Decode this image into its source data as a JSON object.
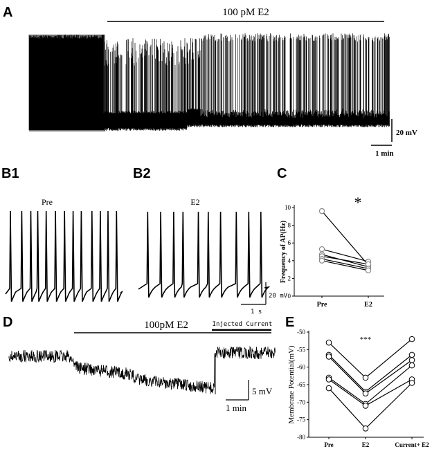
{
  "panels": {
    "a": "A",
    "b1": "B1",
    "b2": "B2",
    "c": "C",
    "d": "D",
    "e": "E"
  },
  "panel_a": {
    "treatment_label": "100 pM E2",
    "scale_v": "20 mV",
    "scale_t": "1 min"
  },
  "panel_b1": {
    "condition": "Pre",
    "spike_count": 13
  },
  "panel_b2": {
    "condition": "E2",
    "spike_count": 10,
    "scale_v": "20 mV",
    "scale_t": "1 s"
  },
  "panel_d": {
    "treatment_label": "100pM E2",
    "injected_label": "Injected Current",
    "scale_v": "5 mV",
    "scale_t": "1 min"
  },
  "chart_data": [
    {
      "panel": "C",
      "type": "scatter",
      "title": "",
      "xlabel": "",
      "ylabel": "Frequency of AP(Hz)",
      "categories": [
        "Pre",
        "E2"
      ],
      "ylim": [
        0,
        10
      ],
      "yticks": [
        "0",
        "2",
        "4",
        "6",
        "8",
        "10"
      ],
      "significance": "*",
      "series": [
        {
          "values": [
            9.6,
            3.5
          ]
        },
        {
          "values": [
            5.3,
            3.9
          ]
        },
        {
          "values": [
            4.7,
            3.3
          ]
        },
        {
          "values": [
            4.5,
            3.6
          ]
        },
        {
          "values": [
            4.2,
            3.1
          ]
        },
        {
          "values": [
            4.0,
            2.9
          ]
        }
      ]
    },
    {
      "panel": "E",
      "type": "line",
      "title": "",
      "xlabel": "",
      "ylabel": "Membrane Potential(mV)",
      "categories": [
        "Pre",
        "E2",
        "Current+ E2"
      ],
      "ylim": [
        -80,
        -50
      ],
      "yticks": [
        "-50",
        "-55",
        "-60",
        "-65",
        "-70",
        "-75",
        "-80"
      ],
      "significance": "***",
      "series": [
        {
          "values": [
            -53,
            -63,
            -52
          ]
        },
        {
          "values": [
            -56.5,
            -67,
            -56.5
          ]
        },
        {
          "values": [
            -57,
            -67.5,
            -58
          ]
        },
        {
          "values": [
            -63,
            -70.5,
            -59.5
          ]
        },
        {
          "values": [
            -63.5,
            -71,
            -63.5
          ]
        },
        {
          "values": [
            -66,
            -77.5,
            -64.5
          ]
        }
      ]
    }
  ]
}
